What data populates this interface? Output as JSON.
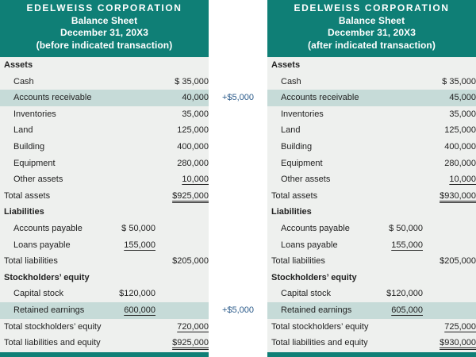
{
  "left": {
    "header": [
      "EDELWEISS CORPORATION",
      "Balance Sheet",
      "December 31, 20X3",
      "(before indicated transaction)"
    ],
    "rows": [
      {
        "label": "Assets",
        "c1": "",
        "c2": ""
      },
      {
        "label": "Cash",
        "c1": "",
        "c2": "$ 35,000"
      },
      {
        "label": "Accounts receivable",
        "c1": "",
        "c2": "40,000"
      },
      {
        "label": "Inventories",
        "c1": "",
        "c2": "35,000"
      },
      {
        "label": "Land",
        "c1": "",
        "c2": "125,000"
      },
      {
        "label": "Building",
        "c1": "",
        "c2": "400,000"
      },
      {
        "label": "Equipment",
        "c1": "",
        "c2": "280,000"
      },
      {
        "label": "Other assets",
        "c1": "",
        "c2": "10,000"
      },
      {
        "label": "Total assets",
        "c1": "",
        "c2": "$925,000"
      },
      {
        "label": "Liabilities",
        "c1": "",
        "c2": ""
      },
      {
        "label": "Accounts payable",
        "c1": "$ 50,000",
        "c2": ""
      },
      {
        "label": "Loans payable",
        "c1": "155,000",
        "c2": ""
      },
      {
        "label": "Total liabilities",
        "c1": "",
        "c2": "$205,000"
      },
      {
        "label": "Stockholders’ equity",
        "c1": "",
        "c2": ""
      },
      {
        "label": "Capital stock",
        "c1": "$120,000",
        "c2": ""
      },
      {
        "label": "Retained earnings",
        "c1": "600,000",
        "c2": ""
      },
      {
        "label": "Total stockholders’ equity",
        "c1": "",
        "c2": "720,000"
      },
      {
        "label": "Total liabilities and equity",
        "c1": "",
        "c2": "$925,000"
      }
    ]
  },
  "right": {
    "header": [
      "EDELWEISS CORPORATION",
      "Balance Sheet",
      "December 31, 20X3",
      "(after indicated transaction)"
    ],
    "rows": [
      {
        "label": "Assets",
        "c1": "",
        "c2": ""
      },
      {
        "label": "Cash",
        "c1": "",
        "c2": "$ 35,000"
      },
      {
        "label": "Accounts receivable",
        "c1": "",
        "c2": "45,000"
      },
      {
        "label": "Inventories",
        "c1": "",
        "c2": "35,000"
      },
      {
        "label": "Land",
        "c1": "",
        "c2": "125,000"
      },
      {
        "label": "Building",
        "c1": "",
        "c2": "400,000"
      },
      {
        "label": "Equipment",
        "c1": "",
        "c2": "280,000"
      },
      {
        "label": "Other assets",
        "c1": "",
        "c2": "10,000"
      },
      {
        "label": "Total assets",
        "c1": "",
        "c2": "$930,000"
      },
      {
        "label": "Liabilities",
        "c1": "",
        "c2": ""
      },
      {
        "label": "Accounts payable",
        "c1": "$ 50,000",
        "c2": ""
      },
      {
        "label": "Loans payable",
        "c1": "155,000",
        "c2": ""
      },
      {
        "label": "Total liabilities",
        "c1": "",
        "c2": "$205,000"
      },
      {
        "label": "Stockholders’ equity",
        "c1": "",
        "c2": ""
      },
      {
        "label": "Capital stock",
        "c1": "$120,000",
        "c2": ""
      },
      {
        "label": "Retained earnings",
        "c1": "605,000",
        "c2": ""
      },
      {
        "label": "Total stockholders’ equity",
        "c1": "",
        "c2": "725,000"
      },
      {
        "label": "Total liabilities and equity",
        "c1": "",
        "c2": "$930,000"
      }
    ]
  },
  "changes": [
    "+$5,000",
    "+$5,000"
  ],
  "colors": {
    "header_bg": "#0f7f76",
    "highlight": "#c6dbd8",
    "body_bg": "#eef0ee",
    "change_text": "#2a5a8a"
  }
}
